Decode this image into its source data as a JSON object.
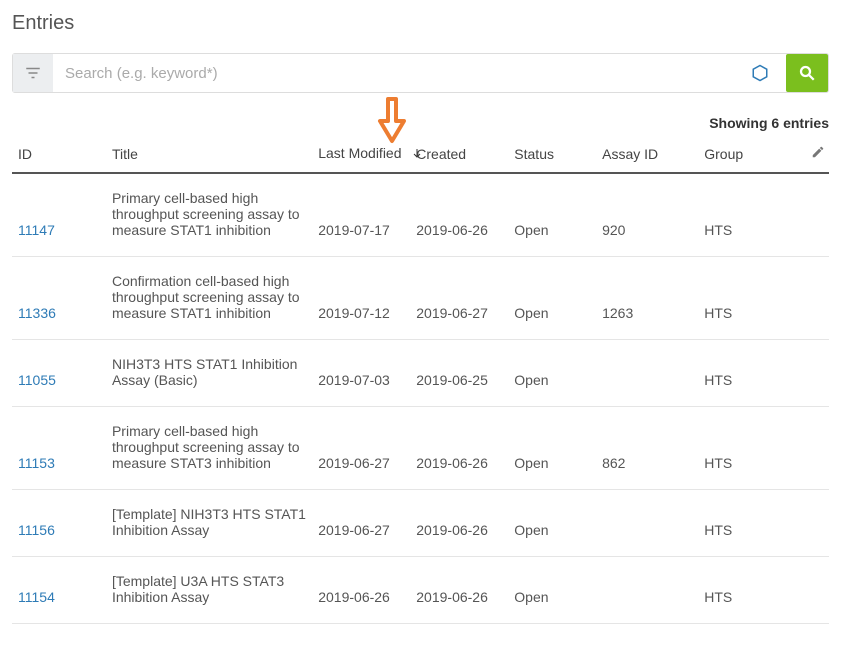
{
  "page_title": "Entries",
  "search": {
    "placeholder": "Search (e.g. keyword*)"
  },
  "showing_text": "Showing 6 entries",
  "columns": {
    "id": "ID",
    "title": "Title",
    "modified": "Last Modified",
    "created": "Created",
    "status": "Status",
    "assay": "Assay ID",
    "group": "Group"
  },
  "sort": {
    "column": "modified",
    "direction": "desc"
  },
  "colors": {
    "link": "#2E7BB6",
    "search_button_bg": "#7bbf1e",
    "annotation_arrow": "#ED7D31",
    "settings_icon": "#2E7BB6"
  },
  "rows": [
    {
      "id": "11147",
      "title": "Primary cell-based high throughput screening assay to measure STAT1 inhibition",
      "modified": "2019-07-17",
      "created": "2019-06-26",
      "status": "Open",
      "assay": "920",
      "group": "HTS"
    },
    {
      "id": "11336",
      "title": "Confirmation cell-based high throughput screening assay to measure STAT1 inhibition",
      "modified": "2019-07-12",
      "created": "2019-06-27",
      "status": "Open",
      "assay": "1263",
      "group": "HTS"
    },
    {
      "id": "11055",
      "title": "NIH3T3 HTS STAT1 Inhibition Assay (Basic)",
      "modified": "2019-07-03",
      "created": "2019-06-25",
      "status": "Open",
      "assay": "",
      "group": "HTS"
    },
    {
      "id": "11153",
      "title": "Primary cell-based high throughput screening assay to measure STAT3 inhibition",
      "modified": "2019-06-27",
      "created": "2019-06-26",
      "status": "Open",
      "assay": "862",
      "group": "HTS"
    },
    {
      "id": "11156",
      "title": "[Template] NIH3T3 HTS STAT1 Inhibition Assay",
      "modified": "2019-06-27",
      "created": "2019-06-26",
      "status": "Open",
      "assay": "",
      "group": "HTS"
    },
    {
      "id": "11154",
      "title": "[Template] U3A HTS STAT3 Inhibition Assay",
      "modified": "2019-06-26",
      "created": "2019-06-26",
      "status": "Open",
      "assay": "",
      "group": "HTS"
    }
  ]
}
